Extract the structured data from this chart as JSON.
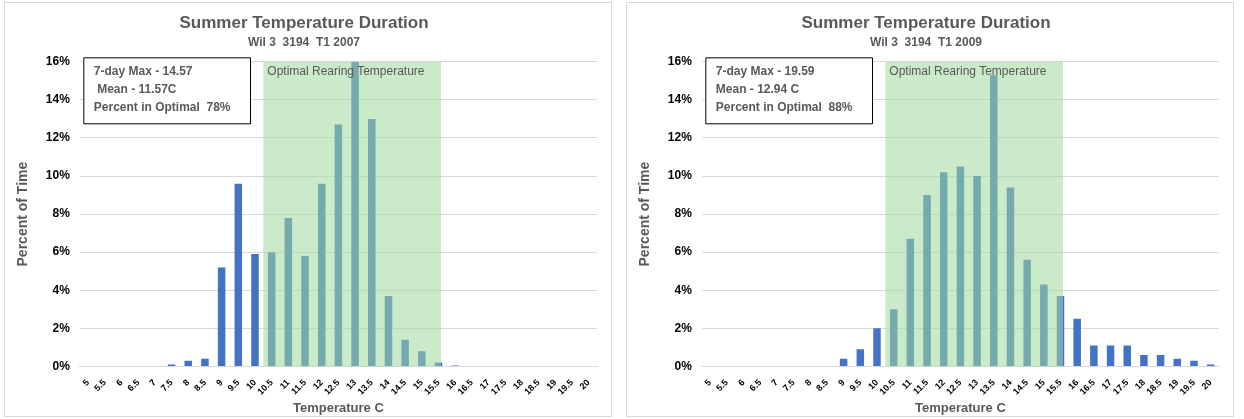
{
  "chart_data": [
    {
      "type": "bar",
      "title": "Summer Temperature Duration",
      "subtitle": "Wil 3  3194  T1 2007",
      "xlabel": "Temperature C",
      "ylabel": "Percent of Time",
      "categories": [
        "5",
        "5.5",
        "6",
        "6.5",
        "7",
        "7.5",
        "8",
        "8.5",
        "9",
        "9.5",
        "10",
        "10.5",
        "11",
        "11.5",
        "12",
        "12.5",
        "13",
        "13.5",
        "14",
        "14.5",
        "15",
        "15.5",
        "16",
        "16.5",
        "17",
        "17.5",
        "18",
        "18.5",
        "19",
        "19.5",
        "20"
      ],
      "values": [
        0,
        0,
        0,
        0,
        0,
        0.1,
        0.3,
        0.4,
        5.2,
        9.6,
        5.9,
        6.0,
        7.8,
        5.8,
        9.6,
        12.7,
        16.0,
        13.0,
        3.7,
        1.4,
        0.8,
        0.2,
        0.05,
        0,
        0,
        0,
        0,
        0,
        0,
        0,
        0
      ],
      "color": "#4472c4",
      "ylim": [
        0,
        16
      ],
      "yticks": [
        {
          "value": 0,
          "label": "0%"
        },
        {
          "value": 2,
          "label": "2%"
        },
        {
          "value": 4,
          "label": "4%"
        },
        {
          "value": 6,
          "label": "6%"
        },
        {
          "value": 8,
          "label": "8%"
        },
        {
          "value": 10,
          "label": "10%"
        },
        {
          "value": 12,
          "label": "12%"
        },
        {
          "value": 14,
          "label": "14%"
        },
        {
          "value": 16,
          "label": "16%"
        }
      ],
      "grid": "y",
      "legend": false,
      "bands": [
        {
          "axis": "x",
          "from": "10.5",
          "to": "15.5",
          "label": "Optimal Rearing Temperature",
          "color": "#9fd89f"
        }
      ],
      "annotations": [
        "7-day Max - 14.57",
        " Mean - 11.57C",
        "Percent in Optimal  78%"
      ]
    },
    {
      "type": "bar",
      "title": "Summer Temperature Duration",
      "subtitle": "Wil 3  3194  T1 2009",
      "xlabel": "Temperature C",
      "ylabel": "Percent of Time",
      "categories": [
        "5",
        "5.5",
        "6",
        "6.5",
        "7",
        "7.5",
        "8",
        "8.5",
        "9",
        "9.5",
        "10",
        "10.5",
        "11",
        "11.5",
        "12",
        "12.5",
        "13",
        "13.5",
        "14",
        "14.5",
        "15",
        "15.5",
        "16",
        "16.5",
        "17",
        "17.5",
        "18",
        "18.5",
        "19",
        "19.5",
        "20"
      ],
      "values": [
        0,
        0,
        0,
        0,
        0,
        0,
        0,
        0,
        0.4,
        0.9,
        2.0,
        3.0,
        6.7,
        9.0,
        10.2,
        10.5,
        10.0,
        15.3,
        9.4,
        5.6,
        4.3,
        3.7,
        2.5,
        1.1,
        1.1,
        1.1,
        0.6,
        0.6,
        0.4,
        0.3,
        0.1
      ],
      "color": "#4472c4",
      "ylim": [
        0,
        16
      ],
      "yticks": [
        {
          "value": 0,
          "label": "0%"
        },
        {
          "value": 2,
          "label": "2%"
        },
        {
          "value": 4,
          "label": "4%"
        },
        {
          "value": 6,
          "label": "6%"
        },
        {
          "value": 8,
          "label": "8%"
        },
        {
          "value": 10,
          "label": "10%"
        },
        {
          "value": 12,
          "label": "12%"
        },
        {
          "value": 14,
          "label": "14%"
        },
        {
          "value": 16,
          "label": "16%"
        }
      ],
      "grid": "y",
      "legend": false,
      "bands": [
        {
          "axis": "x",
          "from": "10.5",
          "to": "15.5",
          "label": "Optimal Rearing Temperature",
          "color": "#9fd89f"
        }
      ],
      "annotations": [
        "7-day Max - 19.59",
        "Mean - 12.94 C",
        "Percent in Optimal  88%"
      ]
    }
  ]
}
